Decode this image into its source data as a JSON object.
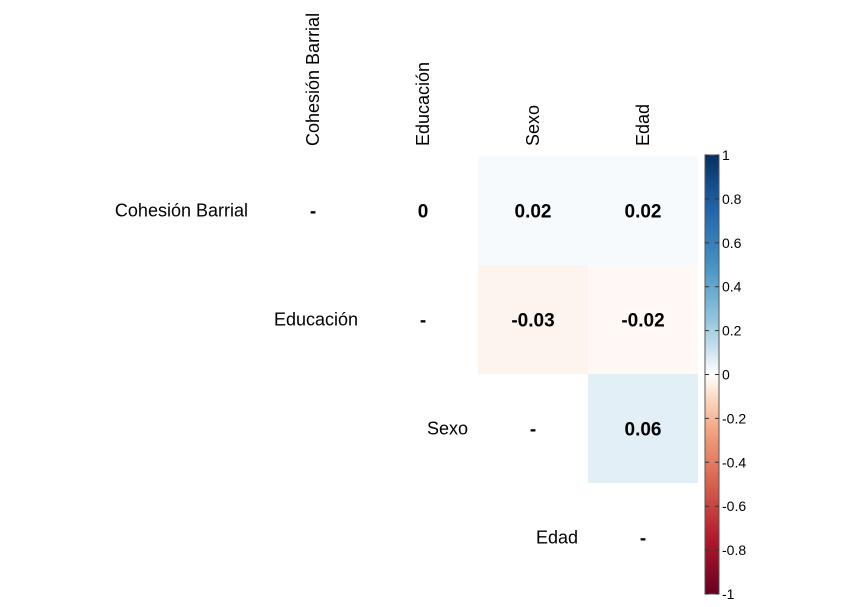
{
  "chart_data": {
    "type": "heatmap",
    "variables": [
      "Cohesión Barrial",
      "Educación",
      "Sexo",
      "Edad"
    ],
    "layout": "upper-triangle",
    "diagonal_label": "-",
    "cells": [
      {
        "row": 0,
        "col": 0,
        "value": null,
        "label": "-"
      },
      {
        "row": 0,
        "col": 1,
        "value": 0,
        "label": "0"
      },
      {
        "row": 0,
        "col": 2,
        "value": 0.02,
        "label": "0.02"
      },
      {
        "row": 0,
        "col": 3,
        "value": 0.02,
        "label": "0.02"
      },
      {
        "row": 1,
        "col": 1,
        "value": null,
        "label": "-"
      },
      {
        "row": 1,
        "col": 2,
        "value": -0.03,
        "label": "-0.03"
      },
      {
        "row": 1,
        "col": 3,
        "value": -0.02,
        "label": "-0.02"
      },
      {
        "row": 2,
        "col": 2,
        "value": null,
        "label": "-"
      },
      {
        "row": 2,
        "col": 3,
        "value": 0.06,
        "label": "0.06"
      },
      {
        "row": 3,
        "col": 3,
        "value": null,
        "label": "-"
      }
    ],
    "colorbar": {
      "range": [
        -1,
        1
      ],
      "ticks": [
        "1",
        "0.8",
        "0.6",
        "0.4",
        "0.2",
        "0",
        "-0.2",
        "-0.4",
        "-0.6",
        "-0.8",
        "-1"
      ],
      "tick_values": [
        1,
        0.8,
        0.6,
        0.4,
        0.2,
        0,
        -0.2,
        -0.4,
        -0.6,
        -0.8,
        -1
      ],
      "colors": {
        "neg": "#67001F",
        "mid": "#FFFFFF",
        "pos": "#053061"
      }
    },
    "legend_placement": "right"
  }
}
